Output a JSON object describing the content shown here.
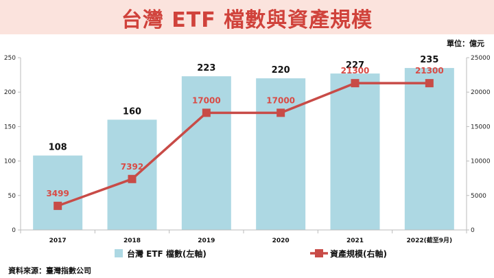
{
  "title": "台灣 ETF 檔數與資產規模",
  "unit_label": "單位：億元",
  "source": "資料來源：臺灣指數公司",
  "colors": {
    "bar": "#add8e3",
    "line": "#c84b47",
    "title": "#d0423b",
    "title_bg": "#fbe3dd",
    "line_label": "#d94b45"
  },
  "chart_data": {
    "type": "bar+line",
    "categories": [
      "2017",
      "2018",
      "2019",
      "2020",
      "2021",
      "2022(截至9月)"
    ],
    "series": [
      {
        "name": "台灣 ETF 檔數(左軸)",
        "type": "bar",
        "axis": "left",
        "values": [
          108,
          160,
          223,
          220,
          227,
          235
        ]
      },
      {
        "name": "資產規模(右軸)",
        "type": "line",
        "axis": "right",
        "values": [
          3499,
          7392,
          17000,
          17000,
          21300,
          21300
        ]
      }
    ],
    "y_left": {
      "ylim": [
        0,
        250
      ],
      "ticks": [
        "0",
        "50",
        "100",
        "150",
        "200",
        "250"
      ]
    },
    "y_right": {
      "ylim": [
        0,
        25000
      ],
      "ticks": [
        "0",
        "5000",
        "10000",
        "15000",
        "20000",
        "25000"
      ]
    },
    "legend_position": "bottom",
    "grid": false
  }
}
